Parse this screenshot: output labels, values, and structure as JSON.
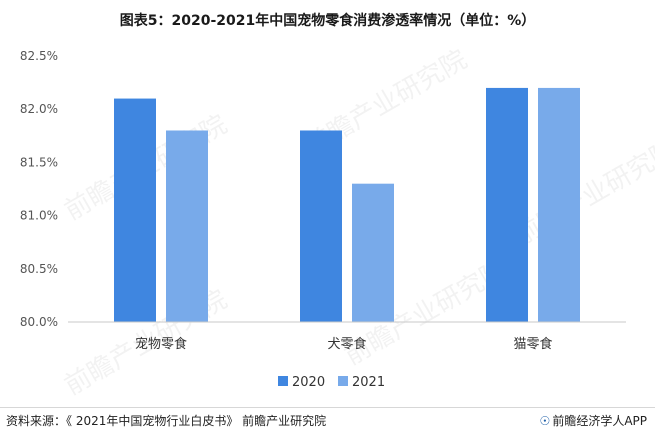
{
  "title": "图表5：2020-2021年中国宠物零食消费渗透率情况（单位：%）",
  "footer": {
    "source": "资料来源：《 2021年中国宠物行业白皮书》 前瞻产业研究院",
    "brand_icon": "lightbulb-icon",
    "brand": "前瞻经济学人APP"
  },
  "watermark": "前瞻产业研究院",
  "colors": {
    "s2020": "#3f86e0",
    "s2021": "#78aaea",
    "axis": "#c9c9c9",
    "tick": "#555555"
  },
  "chart_data": {
    "type": "bar",
    "title": "图表5：2020-2021年中国宠物零食消费渗透率情况（单位：%）",
    "categories": [
      "宠物零食",
      "犬零食",
      "猫零食"
    ],
    "series": [
      {
        "name": "2020",
        "values": [
          82.1,
          81.8,
          82.2
        ]
      },
      {
        "name": "2021",
        "values": [
          81.8,
          81.3,
          82.2
        ]
      }
    ],
    "ylim": [
      80.0,
      82.5
    ],
    "yticks": [
      "80.0%",
      "80.5%",
      "81.0%",
      "81.5%",
      "82.0%",
      "82.5%"
    ],
    "ytick_values": [
      80.0,
      80.5,
      81.0,
      81.5,
      82.0,
      82.5
    ],
    "grid": false,
    "legend": "bottom-center"
  }
}
